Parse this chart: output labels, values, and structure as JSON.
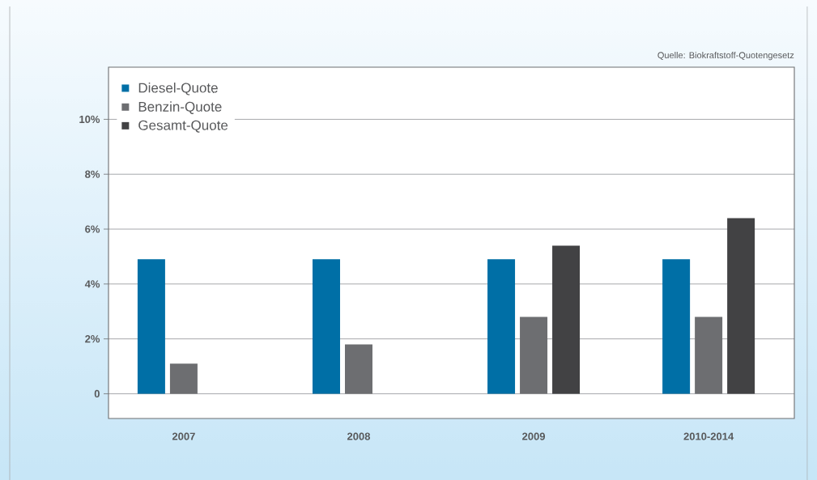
{
  "chart_data": {
    "type": "bar",
    "categories": [
      "2007",
      "2008",
      "2009",
      "2010-2014"
    ],
    "series": [
      {
        "name": "Diesel-Quote",
        "color": "#006fa6",
        "values": [
          4.9,
          4.9,
          4.9,
          4.9
        ]
      },
      {
        "name": "Benzin-Quote",
        "color": "#6d6e71",
        "values": [
          1.1,
          1.8,
          2.8,
          2.8
        ]
      },
      {
        "name": "Gesamt-Quote",
        "color": "#424244",
        "values": [
          null,
          null,
          5.4,
          6.4
        ]
      }
    ],
    "ylim": [
      -0.9,
      11.9
    ],
    "yticks": [
      0,
      {
        "value": 2,
        "label": "2%"
      },
      {
        "value": 4,
        "label": "4%"
      },
      {
        "value": 6,
        "label": "6%"
      },
      {
        "value": 8,
        "label": "8%"
      },
      {
        "value": 10,
        "label": "10%"
      }
    ],
    "grid": "y",
    "legend": "top left",
    "annotations": [
      "Quelle: Biokraftstoff-Quotengesetz"
    ]
  }
}
